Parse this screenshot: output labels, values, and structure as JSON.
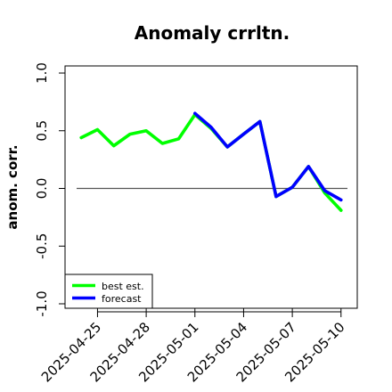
{
  "chart_data": {
    "type": "line",
    "title": "Anomaly crrltn.",
    "ylabel": "anom. corr.",
    "xlabel": "",
    "ylim": [
      -1.0,
      1.0
    ],
    "yticks": [
      "-1.0",
      "-0.5",
      "0.0",
      "0.5",
      "1.0"
    ],
    "ytick_values": [
      -1.0,
      -0.5,
      0.0,
      0.5,
      1.0
    ],
    "xlim": [
      "2025-04-23",
      "2025-05-11"
    ],
    "xticks": [
      "2025-04-25",
      "2025-04-28",
      "2025-05-01",
      "2025-05-04",
      "2025-05-07",
      "2025-05-10"
    ],
    "highlight_tick": "2025-05-01",
    "reference_line": 0.0,
    "legend_position": "bottom-left",
    "series": [
      {
        "name": "best est.",
        "color": "#00ff00",
        "x": [
          "2025-04-24",
          "2025-04-25",
          "2025-04-26",
          "2025-04-27",
          "2025-04-28",
          "2025-04-29",
          "2025-04-30",
          "2025-05-01",
          "2025-05-02",
          "2025-05-03",
          "2025-05-04",
          "2025-05-05",
          "2025-05-06",
          "2025-05-07",
          "2025-05-08",
          "2025-05-09",
          "2025-05-10"
        ],
        "y": [
          0.44,
          0.51,
          0.37,
          0.47,
          0.5,
          0.39,
          0.43,
          0.64,
          0.52,
          0.36,
          0.47,
          0.58,
          -0.07,
          0.01,
          0.19,
          -0.04,
          -0.19
        ]
      },
      {
        "name": "forecast",
        "color": "#0000ff",
        "x": [
          "2025-05-01",
          "2025-05-02",
          "2025-05-03",
          "2025-05-04",
          "2025-05-05",
          "2025-05-06",
          "2025-05-07",
          "2025-05-08",
          "2025-05-09",
          "2025-05-10"
        ],
        "y": [
          0.65,
          0.53,
          0.36,
          0.47,
          0.58,
          -0.07,
          0.01,
          0.19,
          -0.02,
          -0.1
        ]
      }
    ]
  },
  "colors": {
    "highlight_tick": "#228b22",
    "axis": "#000000",
    "reference_line": "#555555"
  }
}
